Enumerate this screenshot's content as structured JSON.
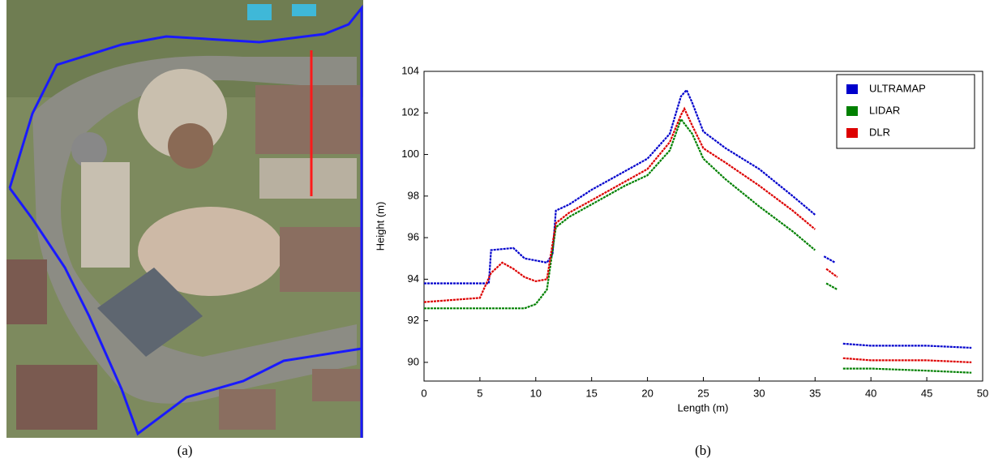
{
  "panel_labels": [
    "(a)",
    "(b)"
  ],
  "chart_data": {
    "type": "line",
    "xlabel": "Length (m)",
    "ylabel": "Height (m)",
    "xlim": [
      0,
      50
    ],
    "ylim": [
      89.1,
      104
    ],
    "xticks": [
      0,
      5,
      10,
      15,
      20,
      25,
      30,
      35,
      40,
      45,
      50
    ],
    "yticks": [
      90,
      92,
      94,
      96,
      98,
      100,
      102,
      104
    ],
    "legend": "upper right",
    "series": [
      {
        "name": "ULTRAMAP",
        "color": "#0000cc",
        "x": [
          0,
          5.8,
          6,
          8,
          9,
          11,
          11.5,
          11.8,
          13,
          15,
          18,
          20,
          22,
          23,
          23.5,
          24,
          25,
          27,
          30,
          33,
          35,
          35.5,
          35.8,
          36.8,
          37.3,
          37.5,
          40,
          45,
          49
        ],
        "y": [
          93.8,
          93.8,
          95.4,
          95.5,
          95,
          94.8,
          95.2,
          97.3,
          97.6,
          98.3,
          99.2,
          99.8,
          101,
          102.8,
          103.1,
          102.5,
          101.1,
          100.3,
          99.3,
          98,
          97.1,
          null,
          95.1,
          94.8,
          null,
          90.9,
          90.8,
          90.8,
          90.7
        ]
      },
      {
        "name": "LIDAR",
        "color": "#008000",
        "x": [
          0,
          5,
          9,
          10,
          11,
          11.8,
          13,
          15,
          18,
          20,
          22,
          23,
          24,
          25,
          27,
          30,
          33,
          35,
          35.5,
          36,
          37,
          37.3,
          37.5,
          40,
          45,
          49
        ],
        "y": [
          92.6,
          92.6,
          92.6,
          92.8,
          93.5,
          96.5,
          97,
          97.6,
          98.5,
          99,
          100.2,
          101.7,
          101,
          99.8,
          98.8,
          97.5,
          96.3,
          95.4,
          null,
          93.8,
          93.5,
          null,
          89.7,
          89.7,
          89.6,
          89.5
        ]
      },
      {
        "name": "DLR",
        "color": "#dd0000",
        "x": [
          0,
          5,
          6,
          7,
          8,
          9,
          10,
          11,
          11.8,
          13,
          15,
          18,
          20,
          22,
          23,
          23.3,
          24,
          25,
          27,
          30,
          33,
          35,
          35.5,
          36,
          37,
          37.3,
          37.5,
          40,
          45,
          49
        ],
        "y": [
          92.9,
          93.1,
          94.3,
          94.8,
          94.5,
          94.1,
          93.9,
          94,
          96.7,
          97.2,
          97.8,
          98.7,
          99.3,
          100.6,
          101.9,
          102.2,
          101.4,
          100.3,
          99.6,
          98.5,
          97.3,
          96.4,
          null,
          94.5,
          94.1,
          null,
          90.2,
          90.1,
          90.1,
          90
        ]
      }
    ]
  }
}
